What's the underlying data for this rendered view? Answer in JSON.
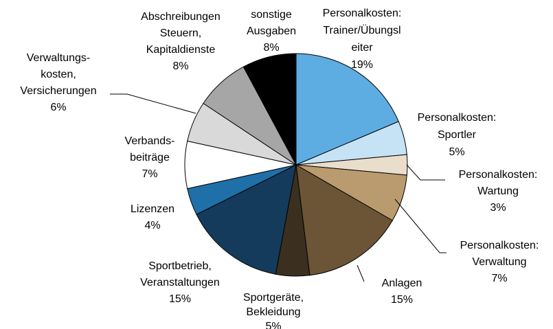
{
  "chart_data": {
    "type": "pie",
    "categories": [
      [
        "Personalkosten:",
        "Trainer/Übungsl",
        "eiter"
      ],
      [
        "Personalkosten:",
        "Sportler"
      ],
      [
        "Personalkosten:",
        "Wartung"
      ],
      [
        "Personalkosten:",
        "Verwaltung"
      ],
      [
        "Anlagen"
      ],
      [
        "Sportgeräte,",
        "Bekleidung"
      ],
      [
        "Sportbetrieb,",
        "Veranstaltungen"
      ],
      [
        "Lizenzen"
      ],
      [
        "Verbands-",
        "beiträge"
      ],
      [
        "Verwaltungs-",
        "kosten,",
        "Versicherungen"
      ],
      [
        "Abschreibungen",
        "Steuern,",
        "Kapitaldienste"
      ],
      [
        "sonstige",
        "Ausgaben"
      ]
    ],
    "values": [
      19,
      5,
      3,
      7,
      15,
      5,
      15,
      4,
      7,
      6,
      8,
      8
    ],
    "value_labels": [
      "19%",
      "5%",
      "3%",
      "7%",
      "15%",
      "5%",
      "15%",
      "4%",
      "7%",
      "6%",
      "8%",
      "8%"
    ],
    "colors": [
      "#5dade2",
      "#c6e2f5",
      "#e9ddcc",
      "#b99b6f",
      "#6b5536",
      "#3b2f1f",
      "#143b5b",
      "#1f70a9",
      "#ffffff",
      "#d9d9d9",
      "#a6a6a6",
      "#000000"
    ]
  }
}
